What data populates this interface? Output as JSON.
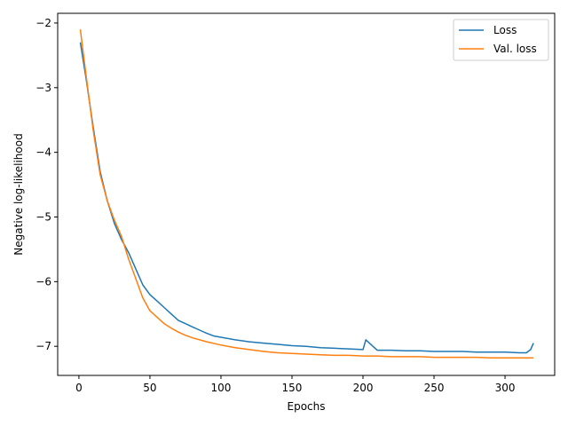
{
  "chart_data": {
    "type": "line",
    "title": "",
    "xlabel": "Epochs",
    "ylabel": "Negative log-likelihood",
    "xlim": [
      -14.95,
      334.95
    ],
    "ylim": [
      -7.45,
      -1.85
    ],
    "xticks": [
      0,
      50,
      100,
      150,
      200,
      250,
      300
    ],
    "xtick_labels": [
      "0",
      "50",
      "100",
      "150",
      "200",
      "250",
      "300"
    ],
    "yticks": [
      -7,
      -6,
      -5,
      -4,
      -3,
      -2
    ],
    "ytick_labels": [
      "−7",
      "−6",
      "−5",
      "−4",
      "−3",
      "−2"
    ],
    "grid": false,
    "legend_position": "top-right",
    "series": [
      {
        "name": "Loss",
        "color": "#1f77b4",
        "x": [
          1,
          5,
          10,
          15,
          20,
          25,
          30,
          35,
          40,
          45,
          50,
          55,
          60,
          65,
          70,
          75,
          80,
          85,
          90,
          95,
          100,
          110,
          120,
          130,
          140,
          150,
          160,
          170,
          180,
          190,
          200,
          202,
          210,
          220,
          230,
          240,
          250,
          260,
          270,
          280,
          290,
          300,
          310,
          315,
          318,
          320
        ],
        "y": [
          -2.3,
          -2.85,
          -3.6,
          -4.3,
          -4.75,
          -5.1,
          -5.35,
          -5.55,
          -5.8,
          -6.05,
          -6.2,
          -6.3,
          -6.4,
          -6.5,
          -6.6,
          -6.65,
          -6.7,
          -6.75,
          -6.8,
          -6.84,
          -6.86,
          -6.9,
          -6.93,
          -6.95,
          -6.97,
          -6.99,
          -7.0,
          -7.02,
          -7.03,
          -7.04,
          -7.05,
          -6.9,
          -7.06,
          -7.06,
          -7.07,
          -7.07,
          -7.08,
          -7.08,
          -7.08,
          -7.09,
          -7.09,
          -7.09,
          -7.1,
          -7.1,
          -7.05,
          -6.95
        ]
      },
      {
        "name": "Val. loss",
        "color": "#ff7f0e",
        "x": [
          1,
          5,
          10,
          15,
          20,
          25,
          30,
          35,
          40,
          45,
          50,
          55,
          60,
          65,
          70,
          75,
          80,
          90,
          100,
          110,
          120,
          130,
          140,
          150,
          160,
          170,
          180,
          190,
          200,
          210,
          220,
          230,
          240,
          250,
          260,
          270,
          280,
          290,
          300,
          310,
          320
        ],
        "y": [
          -2.1,
          -2.8,
          -3.65,
          -4.35,
          -4.75,
          -5.05,
          -5.3,
          -5.65,
          -5.95,
          -6.25,
          -6.45,
          -6.55,
          -6.65,
          -6.72,
          -6.78,
          -6.83,
          -6.87,
          -6.93,
          -6.98,
          -7.02,
          -7.05,
          -7.08,
          -7.1,
          -7.11,
          -7.12,
          -7.13,
          -7.14,
          -7.14,
          -7.15,
          -7.15,
          -7.16,
          -7.16,
          -7.16,
          -7.17,
          -7.17,
          -7.17,
          -7.17,
          -7.18,
          -7.18,
          -7.18,
          -7.18
        ]
      }
    ]
  }
}
